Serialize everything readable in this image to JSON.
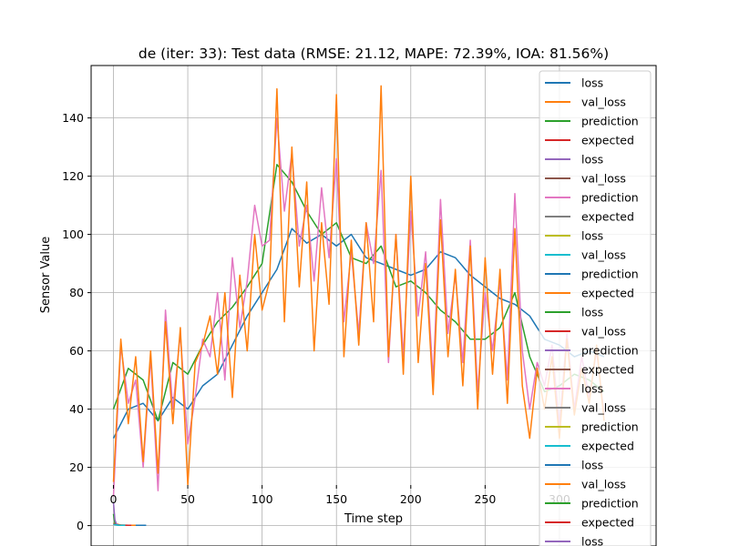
{
  "chart_data": {
    "type": "line",
    "title": "de (iter: 33): Test data (RMSE: 21.12, MAPE: 72.39%, IOA: 81.56%)",
    "xlabel": "Time step",
    "ylabel": "Sensor Value",
    "xlim": [
      -15,
      365
    ],
    "ylim": [
      -7,
      158
    ],
    "xticks": [
      0,
      50,
      100,
      150,
      200,
      250,
      300
    ],
    "yticks": [
      0,
      20,
      40,
      60,
      80,
      100,
      120,
      140
    ],
    "grid": true,
    "legend_position": "top-right",
    "legend": [
      {
        "label": "loss",
        "color": "#1f77b4"
      },
      {
        "label": "val_loss",
        "color": "#ff7f0e"
      },
      {
        "label": "prediction",
        "color": "#2ca02c"
      },
      {
        "label": "expected",
        "color": "#d62728"
      },
      {
        "label": "loss",
        "color": "#9467bd"
      },
      {
        "label": "val_loss",
        "color": "#8c564b"
      },
      {
        "label": "prediction",
        "color": "#e377c2"
      },
      {
        "label": "expected",
        "color": "#7f7f7f"
      },
      {
        "label": "loss",
        "color": "#bcbd22"
      },
      {
        "label": "val_loss",
        "color": "#17becf"
      },
      {
        "label": "prediction",
        "color": "#1f77b4"
      },
      {
        "label": "expected",
        "color": "#ff7f0e"
      },
      {
        "label": "loss",
        "color": "#2ca02c"
      },
      {
        "label": "val_loss",
        "color": "#d62728"
      },
      {
        "label": "prediction",
        "color": "#9467bd"
      },
      {
        "label": "expected",
        "color": "#8c564b"
      },
      {
        "label": "loss",
        "color": "#e377c2"
      },
      {
        "label": "val_loss",
        "color": "#7f7f7f"
      },
      {
        "label": "prediction",
        "color": "#bcbd22"
      },
      {
        "label": "expected",
        "color": "#17becf"
      },
      {
        "label": "loss",
        "color": "#1f77b4"
      },
      {
        "label": "val_loss",
        "color": "#ff7f0e"
      },
      {
        "label": "prediction",
        "color": "#2ca02c"
      },
      {
        "label": "expected",
        "color": "#d62728"
      },
      {
        "label": "loss",
        "color": "#9467bd"
      }
    ],
    "series": [
      {
        "color": "#1f77b4",
        "x": [
          0,
          10,
          20,
          30,
          40,
          50,
          60,
          70,
          80,
          90,
          100,
          110,
          120,
          130,
          140,
          150,
          160,
          170,
          180,
          190,
          200,
          210,
          220,
          230,
          240,
          250,
          260,
          270,
          280,
          290,
          300,
          310,
          320,
          330
        ],
        "y": [
          30,
          40,
          42,
          36,
          44,
          40,
          48,
          52,
          62,
          72,
          80,
          88,
          102,
          97,
          100,
          96,
          100,
          92,
          90,
          88,
          86,
          88,
          94,
          92,
          86,
          82,
          78,
          76,
          72,
          64,
          62,
          58,
          60,
          58
        ]
      },
      {
        "color": "#2ca02c",
        "x": [
          0,
          10,
          20,
          30,
          40,
          50,
          60,
          70,
          80,
          90,
          100,
          110,
          120,
          130,
          140,
          150,
          160,
          170,
          180,
          190,
          200,
          210,
          220,
          230,
          240,
          250,
          260,
          270,
          280,
          290,
          300,
          310,
          320,
          330
        ],
        "y": [
          40,
          54,
          50,
          36,
          56,
          52,
          62,
          70,
          75,
          82,
          90,
          124,
          118,
          108,
          100,
          104,
          92,
          90,
          96,
          82,
          84,
          80,
          74,
          70,
          64,
          64,
          68,
          80,
          58,
          46,
          48,
          52,
          50,
          46
        ]
      },
      {
        "color": "#e377c2",
        "x": [
          0,
          5,
          10,
          15,
          20,
          25,
          30,
          35,
          40,
          45,
          50,
          55,
          60,
          65,
          70,
          75,
          80,
          85,
          90,
          95,
          100,
          105,
          110,
          115,
          120,
          125,
          130,
          135,
          140,
          145,
          150,
          155,
          160,
          165,
          170,
          175,
          180,
          185,
          190,
          195,
          200,
          205,
          210,
          215,
          220,
          225,
          230,
          235,
          240,
          245,
          250,
          255,
          260,
          265,
          270,
          275,
          280,
          285,
          290,
          295,
          300,
          305,
          310,
          315,
          320,
          325,
          330
        ],
        "y": [
          10,
          62,
          42,
          50,
          20,
          58,
          12,
          74,
          40,
          66,
          28,
          44,
          64,
          58,
          80,
          50,
          92,
          68,
          84,
          110,
          96,
          98,
          140,
          108,
          128,
          96,
          110,
          84,
          116,
          92,
          126,
          70,
          94,
          66,
          104,
          90,
          122,
          56,
          100,
          58,
          108,
          72,
          94,
          50,
          112,
          66,
          86,
          56,
          98,
          46,
          80,
          60,
          84,
          50,
          114,
          60,
          40,
          56,
          48,
          62,
          34,
          66,
          40,
          58,
          44,
          60,
          38
        ]
      },
      {
        "color": "#ff7f0e",
        "x": [
          0,
          5,
          10,
          15,
          20,
          25,
          30,
          35,
          40,
          45,
          50,
          55,
          60,
          65,
          70,
          75,
          80,
          85,
          90,
          95,
          100,
          105,
          110,
          115,
          120,
          125,
          130,
          135,
          140,
          145,
          150,
          155,
          160,
          165,
          170,
          175,
          180,
          185,
          190,
          195,
          200,
          205,
          210,
          215,
          220,
          225,
          230,
          235,
          240,
          245,
          250,
          255,
          260,
          265,
          270,
          275,
          280,
          285,
          290,
          295,
          300,
          305,
          310,
          315,
          320,
          325,
          330
        ],
        "y": [
          15,
          64,
          35,
          58,
          22,
          60,
          18,
          70,
          35,
          68,
          14,
          56,
          62,
          72,
          52,
          80,
          44,
          86,
          60,
          100,
          74,
          84,
          150,
          70,
          130,
          82,
          118,
          60,
          104,
          76,
          148,
          58,
          98,
          62,
          104,
          70,
          151,
          58,
          100,
          52,
          120,
          56,
          90,
          45,
          105,
          58,
          88,
          48,
          96,
          40,
          92,
          52,
          88,
          42,
          102,
          48,
          30,
          54,
          40,
          58,
          30,
          64,
          38,
          54,
          42,
          62,
          36
        ]
      },
      {
        "color": "#1f77b4",
        "x": [
          0,
          5,
          10,
          15,
          20,
          22
        ],
        "y": [
          0.5,
          0.2,
          0.1,
          0.1,
          0.1,
          0.1
        ]
      },
      {
        "color": "#ff7f0e",
        "x": [
          0,
          5,
          10,
          15
        ],
        "y": [
          0.8,
          0.2,
          0.1,
          0.1
        ]
      },
      {
        "color": "#2ca02c",
        "x": [
          0,
          1,
          2,
          3,
          4,
          5
        ],
        "y": [
          4,
          0.8,
          0.3,
          0.2,
          0.1,
          0.1
        ]
      },
      {
        "color": "#d62728",
        "x": [
          0,
          4,
          8,
          12
        ],
        "y": [
          0.6,
          0.2,
          0.1,
          0.1
        ]
      },
      {
        "color": "#9467bd",
        "x": [
          0,
          1,
          2,
          3,
          4
        ],
        "y": [
          8,
          2,
          0.6,
          0.2,
          0.1
        ]
      },
      {
        "color": "#17becf",
        "x": [
          0,
          4,
          8
        ],
        "y": [
          0.4,
          0.1,
          0.1
        ]
      }
    ]
  }
}
